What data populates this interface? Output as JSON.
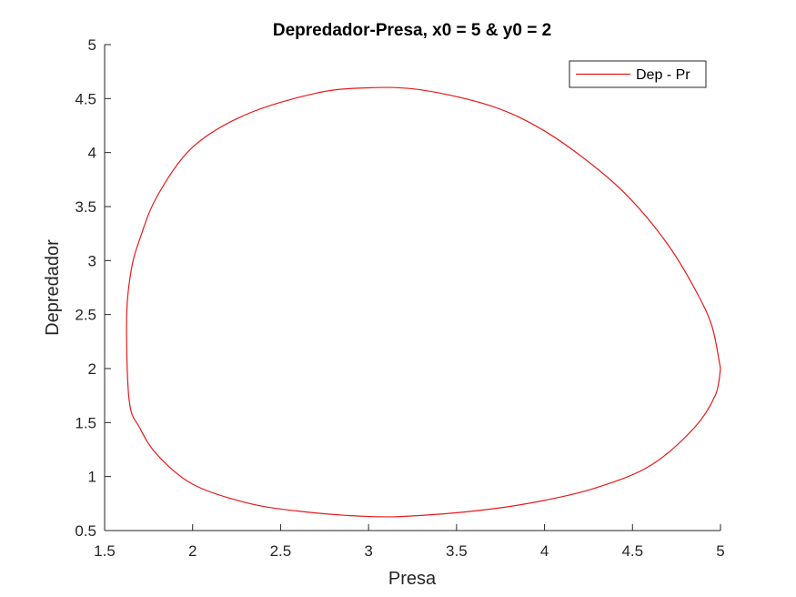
{
  "chart_data": {
    "type": "line",
    "title": "Depredador-Presa, x0 = 5 & y0 = 2",
    "xlabel": "Presa",
    "ylabel": "Depredador",
    "xlim": [
      1.5,
      5
    ],
    "ylim": [
      0.5,
      5
    ],
    "xticks": [
      1.5,
      2,
      2.5,
      3,
      3.5,
      4,
      4.5,
      5
    ],
    "yticks": [
      0.5,
      1,
      1.5,
      2,
      2.5,
      3,
      3.5,
      4,
      4.5,
      5
    ],
    "xtick_labels": [
      "1.5",
      "2",
      "2.5",
      "3",
      "3.5",
      "4",
      "4.5",
      "5"
    ],
    "ytick_labels": [
      "0.5",
      "1",
      "1.5",
      "2",
      "2.5",
      "3",
      "3.5",
      "4",
      "4.5",
      "5"
    ],
    "grid": false,
    "legend_position": "top-right",
    "series": [
      {
        "name": "Dep - Pr",
        "color": "#e8191b",
        "x": [
          5.0,
          4.95,
          4.85,
          4.7,
          4.5,
          4.3,
          4.0,
          3.7,
          3.3,
          3.0,
          2.7,
          2.3,
          2.0,
          1.8,
          1.7,
          1.65,
          1.625,
          1.64,
          1.7,
          1.8,
          2.0,
          2.3,
          2.6,
          3.0,
          3.3,
          3.7,
          4.0,
          4.3,
          4.6,
          4.85,
          4.97,
          5.0
        ],
        "y": [
          2.0,
          2.4,
          2.75,
          3.15,
          3.55,
          3.85,
          4.2,
          4.43,
          4.58,
          4.6,
          4.55,
          4.35,
          4.05,
          3.6,
          3.2,
          2.9,
          2.45,
          1.7,
          1.45,
          1.2,
          0.93,
          0.76,
          0.68,
          0.63,
          0.64,
          0.7,
          0.78,
          0.9,
          1.1,
          1.45,
          1.75,
          2.0
        ]
      }
    ]
  }
}
